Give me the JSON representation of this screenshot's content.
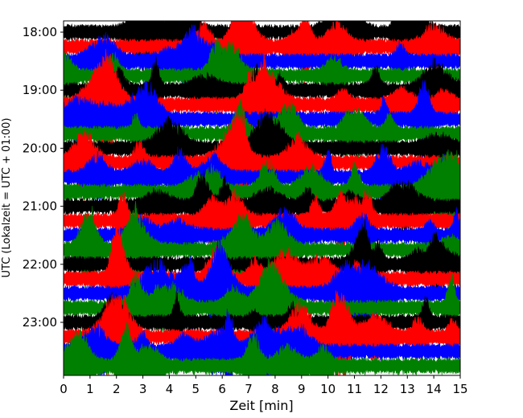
{
  "chart_data": {
    "type": "line",
    "subtype": "helicorder",
    "xlabel": "Zeit  [min]",
    "ylabel": "UTC (Lokalzeit = UTC + 01:00)",
    "xlim": [
      0,
      15
    ],
    "xticks": [
      "0",
      "1",
      "2",
      "3",
      "4",
      "5",
      "6",
      "7",
      "8",
      "9",
      "10",
      "11",
      "12",
      "13",
      "14",
      "15"
    ],
    "yticks": [
      "18:00",
      "19:00",
      "20:00",
      "21:00",
      "22:00",
      "23:00"
    ],
    "time_range": [
      "18:00",
      "24:00"
    ],
    "minutes_per_line": 15,
    "trace_colors": [
      "#000000",
      "#ff0000",
      "#0000ff",
      "#008000"
    ],
    "series": [
      {
        "start": "18:00",
        "color": "#000000"
      },
      {
        "start": "18:15",
        "color": "#ff0000"
      },
      {
        "start": "18:30",
        "color": "#0000ff"
      },
      {
        "start": "18:45",
        "color": "#008000"
      },
      {
        "start": "19:00",
        "color": "#000000"
      },
      {
        "start": "19:15",
        "color": "#ff0000"
      },
      {
        "start": "19:30",
        "color": "#0000ff"
      },
      {
        "start": "19:45",
        "color": "#008000"
      },
      {
        "start": "20:00",
        "color": "#000000"
      },
      {
        "start": "20:15",
        "color": "#ff0000"
      },
      {
        "start": "20:30",
        "color": "#0000ff"
      },
      {
        "start": "20:45",
        "color": "#008000"
      },
      {
        "start": "21:00",
        "color": "#000000"
      },
      {
        "start": "21:15",
        "color": "#ff0000"
      },
      {
        "start": "21:30",
        "color": "#0000ff"
      },
      {
        "start": "21:45",
        "color": "#008000"
      },
      {
        "start": "22:00",
        "color": "#000000"
      },
      {
        "start": "22:15",
        "color": "#ff0000"
      },
      {
        "start": "22:30",
        "color": "#0000ff"
      },
      {
        "start": "22:45",
        "color": "#008000"
      },
      {
        "start": "23:00",
        "color": "#000000"
      },
      {
        "start": "23:15",
        "color": "#ff0000"
      },
      {
        "start": "23:30",
        "color": "#0000ff"
      },
      {
        "start": "23:45",
        "color": "#008000"
      }
    ]
  }
}
